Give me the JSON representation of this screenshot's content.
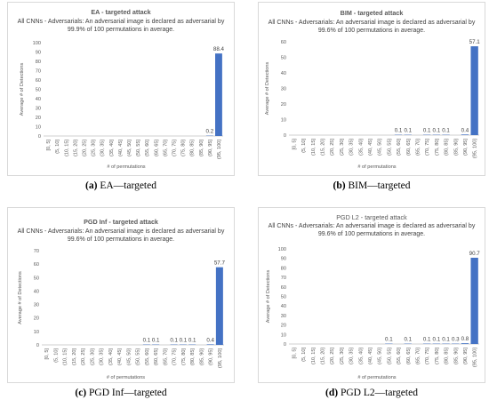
{
  "captions": [
    {
      "letter": "(a)",
      "text": "EA—targeted"
    },
    {
      "letter": "(b)",
      "text": "BIM—targeted"
    },
    {
      "letter": "(c)",
      "text": "PGD Inf—targeted"
    },
    {
      "letter": "(d)",
      "text": "PGD L2—targeted"
    }
  ],
  "bar_color": "#4472c4",
  "chart_data": [
    {
      "type": "bar",
      "title": "EA - targeted attack",
      "subtitle": "All CNNs - Adversarials: An adversarial image is declared as adversarial by 99.9% of 100 permutations in average.",
      "xlabel": "# of permutations",
      "ylabel": "Average # of Detections",
      "ylim": [
        0,
        100
      ],
      "yticks": [
        0,
        10,
        20,
        30,
        40,
        50,
        60,
        70,
        80,
        90,
        100
      ],
      "categories": [
        "[0, 5]",
        "(5, 10]",
        "(10, 15]",
        "(15, 20]",
        "(20, 25]",
        "(25, 30]",
        "(30, 35]",
        "(35, 40]",
        "(40, 45]",
        "(45, 50]",
        "(50, 55]",
        "(55, 60]",
        "(60, 65]",
        "(65, 70]",
        "(70, 75]",
        "(75, 80]",
        "(80, 85]",
        "(85, 90]",
        "(90, 95]",
        "(95, 100]"
      ],
      "values": [
        null,
        null,
        null,
        null,
        null,
        null,
        null,
        null,
        null,
        null,
        null,
        null,
        null,
        null,
        null,
        null,
        null,
        null,
        0.2,
        88.4
      ],
      "grid": false
    },
    {
      "type": "bar",
      "title": "BIM - targeted attack",
      "subtitle": "All CNNs - Adversarials: An adversarial image is declared as adversarial by 99.6% of 100 permutations in average.",
      "xlabel": "# of permutations",
      "ylabel": "Average # of Detections",
      "ylim": [
        0,
        60
      ],
      "yticks": [
        0,
        10,
        20,
        30,
        40,
        50,
        60
      ],
      "categories": [
        "[0, 5]",
        "(5, 10]",
        "(10, 15]",
        "(15, 20]",
        "(20, 25]",
        "(25, 30]",
        "(30, 35]",
        "(35, 40]",
        "(40, 45]",
        "(45, 50]",
        "(50, 55]",
        "(55, 60]",
        "(60, 65]",
        "(65, 70]",
        "(70, 75]",
        "(75, 80]",
        "(80, 85]",
        "(85, 90]",
        "(90, 95]",
        "(95, 100]"
      ],
      "values": [
        null,
        null,
        null,
        null,
        null,
        null,
        null,
        null,
        null,
        null,
        null,
        0.1,
        0.1,
        null,
        0.1,
        0.1,
        0.1,
        null,
        0.4,
        57.1
      ],
      "grid": false
    },
    {
      "type": "bar",
      "title": "PGD Inf - targeted attack",
      "subtitle": "All CNNs - Adversarials: An adversarial image is declared as adversarial by 99.6% of 100 permutations in average.",
      "xlabel": "# of permutations",
      "ylabel": "Average # of Detections",
      "ylim": [
        0,
        70
      ],
      "yticks": [
        0,
        10,
        20,
        30,
        40,
        50,
        60,
        70
      ],
      "categories": [
        "[0, 5]",
        "(5, 10]",
        "(10, 15]",
        "(15, 20]",
        "(20, 25]",
        "(25, 30]",
        "(30, 35]",
        "(35, 40]",
        "(40, 45]",
        "(45, 50]",
        "(50, 55]",
        "(55, 60]",
        "(60, 65]",
        "(65, 70]",
        "(70, 75]",
        "(75, 80]",
        "(80, 85]",
        "(85, 90]",
        "(90, 95]",
        "(95, 100]"
      ],
      "values": [
        null,
        null,
        null,
        null,
        null,
        null,
        null,
        null,
        null,
        null,
        null,
        0.1,
        0.1,
        null,
        0.1,
        0.1,
        0.1,
        null,
        0.4,
        57.7
      ],
      "grid": false
    },
    {
      "type": "bar",
      "title": "PGD L2 - targeted attack",
      "subtitle": "All CNNs - Adversarials: An adversarial image is declared as adversarial by 99.6% of 100 permutations in average.",
      "xlabel": "# of permutations",
      "ylabel": "Average # of Detections",
      "ylim": [
        0,
        100
      ],
      "yticks": [
        0,
        10,
        20,
        30,
        40,
        50,
        60,
        70,
        80,
        90,
        100
      ],
      "categories": [
        "[0, 5]",
        "(5, 10]",
        "(10, 15]",
        "(15, 20]",
        "(20, 25]",
        "(25, 30]",
        "(30, 35]",
        "(35, 40]",
        "(40, 45]",
        "(45, 50]",
        "(50, 55]",
        "(55, 60]",
        "(60, 65]",
        "(65, 70]",
        "(70, 75]",
        "(75, 80]",
        "(80, 85]",
        "(85, 90]",
        "(90, 95]",
        "(95, 100]"
      ],
      "values": [
        null,
        null,
        null,
        null,
        null,
        null,
        null,
        null,
        null,
        null,
        0.1,
        null,
        0.1,
        null,
        0.1,
        0.1,
        0.1,
        0.3,
        0.8,
        90.7
      ],
      "grid": false
    }
  ]
}
